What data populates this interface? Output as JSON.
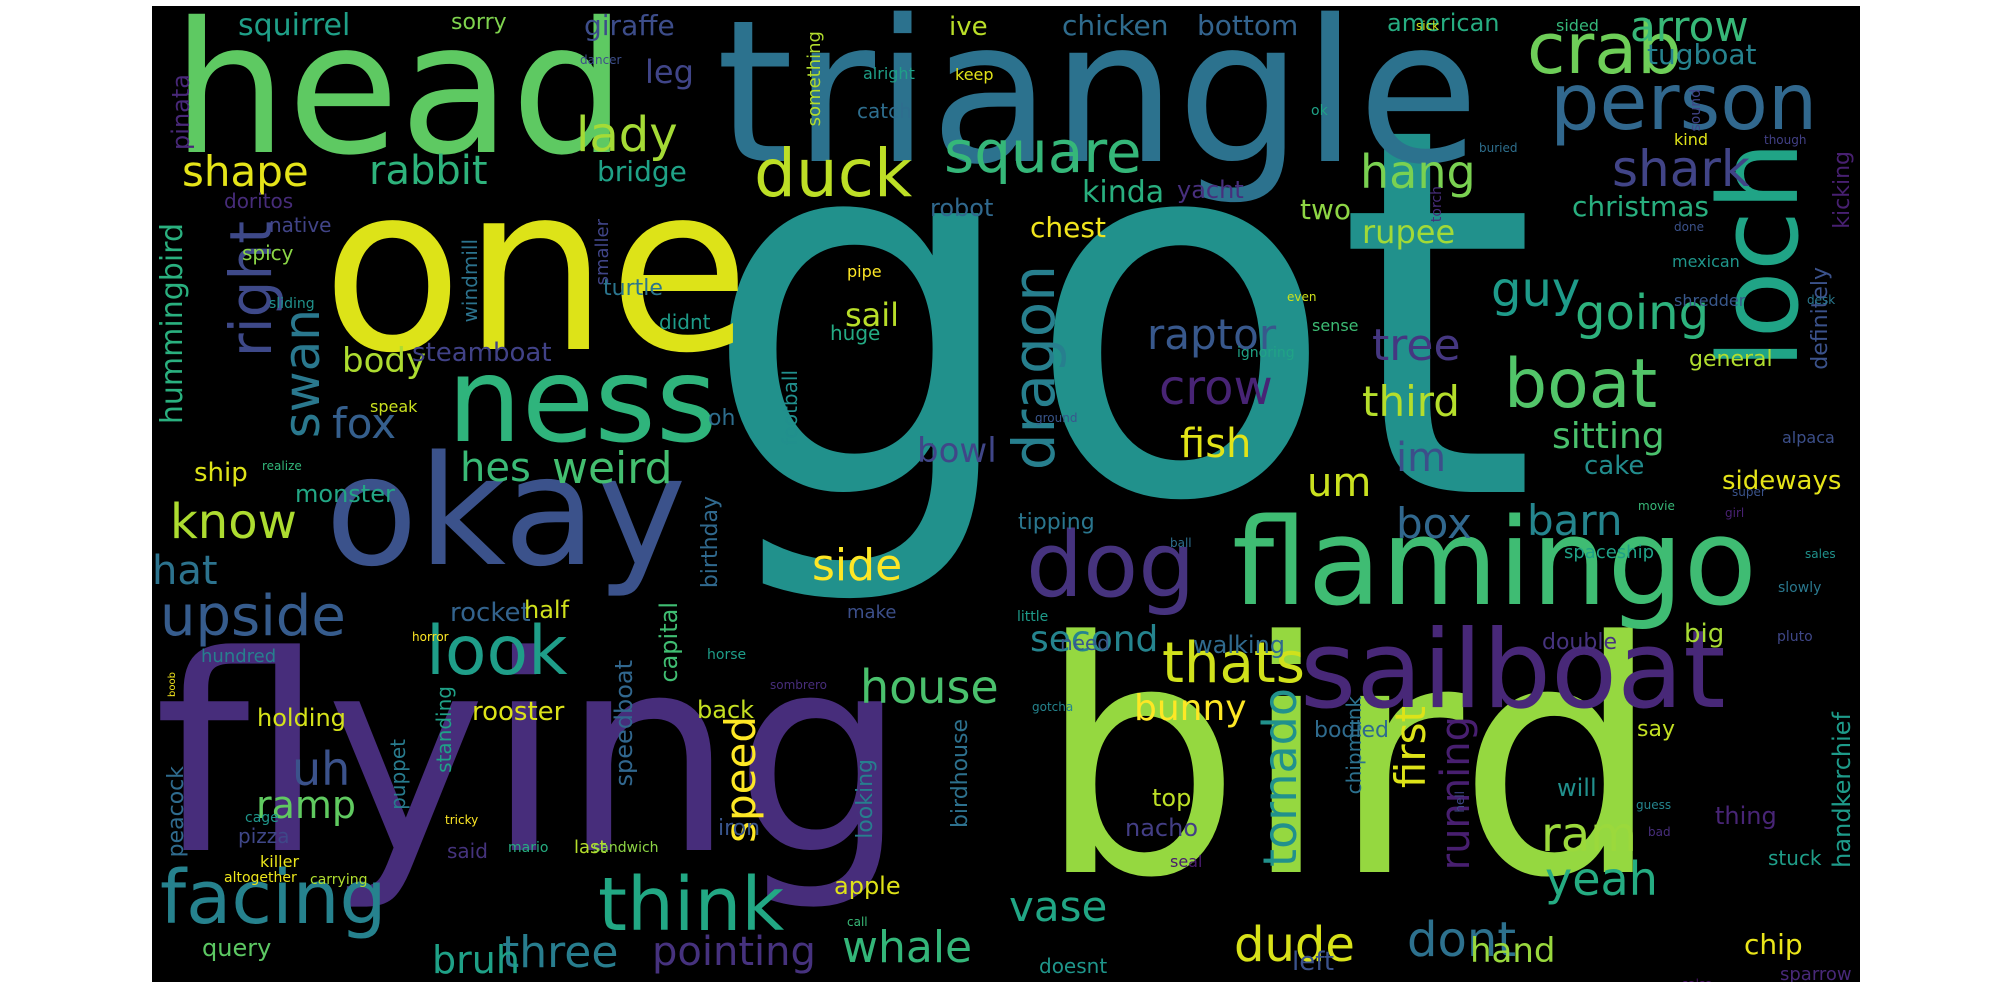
{
  "words": [
    {
      "t": "got",
      "c": "#21918c"
    },
    {
      "t": "flying",
      "c": "#472d7b"
    },
    {
      "t": "bird",
      "c": "#95d840"
    },
    {
      "t": "triangle",
      "c": "#2c728e"
    },
    {
      "t": "one",
      "c": "#dde318"
    },
    {
      "t": "head",
      "c": "#5ec962"
    },
    {
      "t": "okay",
      "c": "#3b528b"
    },
    {
      "t": "ness",
      "c": "#2fb47c"
    },
    {
      "t": "flamingo",
      "c": "#3fbc73"
    },
    {
      "t": "sailboat",
      "c": "#482878"
    },
    {
      "t": "loch",
      "c": "#20a486"
    },
    {
      "t": "person",
      "c": "#31688e"
    },
    {
      "t": "crab",
      "c": "#6ece58"
    },
    {
      "t": "dog",
      "c": "#46337e"
    },
    {
      "t": "facing",
      "c": "#26828e"
    },
    {
      "t": "think",
      "c": "#22a884"
    },
    {
      "t": "duck",
      "c": "#bddf26"
    },
    {
      "t": "square",
      "c": "#35b779"
    },
    {
      "t": "boat",
      "c": "#52c569"
    },
    {
      "t": "look",
      "c": "#1f9e89"
    },
    {
      "t": "upside",
      "c": "#365c8d"
    },
    {
      "t": "thats",
      "c": "#d0e11c"
    },
    {
      "t": "dragon",
      "c": "#277f8e"
    },
    {
      "t": "right",
      "c": "#3e4989"
    },
    {
      "t": "shark",
      "c": "#414487"
    },
    {
      "t": "swan",
      "c": "#2a788e"
    },
    {
      "t": "lady",
      "c": "#a5db36"
    },
    {
      "t": "hang",
      "c": "#7ad151"
    },
    {
      "t": "guy",
      "c": "#1e9b8a"
    },
    {
      "t": "going",
      "c": "#2db27d"
    },
    {
      "t": "crow",
      "c": "#482475"
    },
    {
      "t": "raptor",
      "c": "#38588c"
    },
    {
      "t": "fox",
      "c": "#355f8d"
    },
    {
      "t": "shape",
      "c": "#e5e419"
    },
    {
      "t": "rabbit",
      "c": "#2eb37c"
    },
    {
      "t": "know",
      "c": "#addc30"
    },
    {
      "t": "weird",
      "c": "#44bf70"
    },
    {
      "t": "hes",
      "c": "#3aba76"
    },
    {
      "t": "um",
      "c": "#cae11f"
    },
    {
      "t": "im",
      "c": "#3c4f8a"
    },
    {
      "t": "third",
      "c": "#b5de2b"
    },
    {
      "t": "tree",
      "c": "#453781"
    },
    {
      "t": "box",
      "c": "#31688e"
    },
    {
      "t": "barn",
      "c": "#25858e"
    },
    {
      "t": "side",
      "c": "#fde725"
    },
    {
      "t": "fish",
      "c": "#e2e418"
    },
    {
      "t": "hat",
      "c": "#2c738e"
    },
    {
      "t": "house",
      "c": "#4ac16d"
    },
    {
      "t": "whale",
      "c": "#34b679"
    },
    {
      "t": "dude",
      "c": "#d8e219"
    },
    {
      "t": "yeah",
      "c": "#25ac82"
    },
    {
      "t": "ram",
      "c": "#9bd93c"
    },
    {
      "t": "dont",
      "c": "#2d718e"
    },
    {
      "t": "three",
      "c": "#287d8e"
    },
    {
      "t": "pointing",
      "c": "#46327e"
    },
    {
      "t": "vase",
      "c": "#21a685"
    },
    {
      "t": "bruh",
      "c": "#1fa187"
    },
    {
      "t": "uh",
      "c": "#3b528b"
    },
    {
      "t": "ramp",
      "c": "#60ca60"
    },
    {
      "t": "tornado",
      "c": "#21918c"
    },
    {
      "t": "speed",
      "c": "#fde725"
    },
    {
      "t": "first",
      "c": "#dde318"
    },
    {
      "t": "running",
      "c": "#481f70"
    },
    {
      "t": "body",
      "c": "#addc30"
    },
    {
      "t": "bowl",
      "c": "#404688"
    },
    {
      "t": "second",
      "c": "#25848e"
    },
    {
      "t": "bunny",
      "c": "#fde725"
    },
    {
      "t": "sail",
      "c": "#b8de29"
    },
    {
      "t": "sitting",
      "c": "#4ac16d"
    },
    {
      "t": "christmas",
      "c": "#29af7f"
    },
    {
      "t": "rupee",
      "c": "#a2da37"
    },
    {
      "t": "arrow",
      "c": "#37b878"
    },
    {
      "t": "tugboat",
      "c": "#26828e"
    },
    {
      "t": "squirrel",
      "c": "#1fa088"
    },
    {
      "t": "chicken",
      "c": "#2f6c8e"
    },
    {
      "t": "bottom",
      "c": "#33638d"
    },
    {
      "t": "american",
      "c": "#26ad81"
    },
    {
      "t": "giraffe",
      "c": "#3d4d8a"
    },
    {
      "t": "leg",
      "c": "#404588"
    },
    {
      "t": "bridge",
      "c": "#1fa287"
    },
    {
      "t": "kinda",
      "c": "#29af7f"
    },
    {
      "t": "robot",
      "c": "#30698e"
    },
    {
      "t": "chest",
      "c": "#f1e51d"
    },
    {
      "t": "two",
      "c": "#8ed645"
    },
    {
      "t": "cake",
      "c": "#228c8d"
    },
    {
      "t": "sideways",
      "c": "#e5e419"
    },
    {
      "t": "hummingbird",
      "c": "#2ab07f"
    },
    {
      "t": "steamboat",
      "c": "#414287"
    },
    {
      "t": "ship",
      "c": "#dde318"
    },
    {
      "t": "monster",
      "c": "#22a785"
    },
    {
      "t": "rocket",
      "c": "#33638d"
    },
    {
      "t": "half",
      "c": "#d0e11c"
    },
    {
      "t": "tipping",
      "c": "#2a768e"
    },
    {
      "t": "walking",
      "c": "#306a8e"
    },
    {
      "t": "double",
      "c": "#46337e"
    },
    {
      "t": "big",
      "c": "#a8db34"
    },
    {
      "t": "need",
      "c": "#38598c"
    },
    {
      "t": "holding",
      "c": "#d5e21a"
    },
    {
      "t": "rooster",
      "c": "#dde318"
    },
    {
      "t": "back",
      "c": "#c5e021"
    },
    {
      "t": "bodied",
      "c": "#2f6b8e"
    },
    {
      "t": "say",
      "c": "#c2df23"
    },
    {
      "t": "hand",
      "c": "#99d83d"
    },
    {
      "t": "left",
      "c": "#3b528b"
    },
    {
      "t": "chip",
      "c": "#eae51a"
    },
    {
      "t": "apple",
      "c": "#dfe318"
    },
    {
      "t": "top",
      "c": "#bddf26"
    },
    {
      "t": "nacho",
      "c": "#433e85"
    },
    {
      "t": "will",
      "c": "#21908d"
    },
    {
      "t": "thing",
      "c": "#482576"
    },
    {
      "t": "query",
      "c": "#5cc863"
    },
    {
      "t": "doesnt",
      "c": "#1f968b"
    },
    {
      "t": "iron",
      "c": "#39558c"
    },
    {
      "t": "last",
      "c": "#b5de2b"
    },
    {
      "t": "said",
      "c": "#45337d"
    },
    {
      "t": "pizza",
      "c": "#3f4788"
    },
    {
      "t": "peacock",
      "c": "#2f6b8e"
    },
    {
      "t": "puppet",
      "c": "#287c8e"
    },
    {
      "t": "standing",
      "c": "#1fa187"
    },
    {
      "t": "speedboat",
      "c": "#31678e"
    },
    {
      "t": "capital",
      "c": "#40bd72"
    },
    {
      "t": "birthday",
      "c": "#30698e"
    },
    {
      "t": "football",
      "c": "#218f8d"
    },
    {
      "t": "looking",
      "c": "#277e8e"
    },
    {
      "t": "birdhouse",
      "c": "#2d718e"
    },
    {
      "t": "chipmunk",
      "c": "#2c718e"
    },
    {
      "t": "handkerchief",
      "c": "#1e9b8a"
    },
    {
      "t": "definitely",
      "c": "#3b528b"
    },
    {
      "t": "kicking",
      "c": "#482071"
    },
    {
      "t": "spaceship",
      "c": "#1fa287"
    },
    {
      "t": "mexican",
      "c": "#1f968b"
    },
    {
      "t": "general",
      "c": "#b0dd2f"
    },
    {
      "t": "alpaca",
      "c": "#3c4f8a"
    },
    {
      "t": "shredder",
      "c": "#38588c"
    },
    {
      "t": "sparrow",
      "c": "#482878"
    },
    {
      "t": "stuck",
      "c": "#1f9e89"
    },
    {
      "t": "ive",
      "c": "#bade28"
    },
    {
      "t": "sorry",
      "c": "#7fd34e"
    },
    {
      "t": "pinata",
      "c": "#482878"
    },
    {
      "t": "doritos",
      "c": "#472c7a"
    },
    {
      "t": "native",
      "c": "#414487"
    },
    {
      "t": "spicy",
      "c": "#8bd646"
    },
    {
      "t": "sliding",
      "c": "#20928c"
    },
    {
      "t": "windmill",
      "c": "#2c738e"
    },
    {
      "t": "smaller",
      "c": "#404588"
    },
    {
      "t": "something",
      "c": "#b2dd2d"
    },
    {
      "t": "catch",
      "c": "#2e6e8e"
    },
    {
      "t": "alright",
      "c": "#1fa088"
    },
    {
      "t": "keep",
      "c": "#e2e418"
    },
    {
      "t": "yacht",
      "c": "#472f7d"
    },
    {
      "t": "turtle",
      "c": "#2b758e"
    },
    {
      "t": "didnt",
      "c": "#1e9c89"
    },
    {
      "t": "oh",
      "c": "#2e6e8e"
    },
    {
      "t": "huge",
      "c": "#24aa83"
    },
    {
      "t": "pipe",
      "c": "#fde725"
    },
    {
      "t": "sense",
      "c": "#3dbc74"
    },
    {
      "t": "even",
      "c": "#cde11d"
    },
    {
      "t": "ignoring",
      "c": "#20a386"
    },
    {
      "t": "ground",
      "c": "#39568c"
    },
    {
      "t": "speak",
      "c": "#cae11f"
    },
    {
      "t": "realize",
      "c": "#32b67a"
    },
    {
      "t": "super",
      "c": "#3a538b"
    },
    {
      "t": "girl",
      "c": "#482173"
    },
    {
      "t": "movie",
      "c": "#37b878"
    },
    {
      "t": "ball",
      "c": "#2e6f8e"
    },
    {
      "t": "sales",
      "c": "#20928c"
    },
    {
      "t": "slowly",
      "c": "#2a788e"
    },
    {
      "t": "pluto",
      "c": "#3f4788"
    },
    {
      "t": "sick",
      "c": "#d2e21b"
    },
    {
      "t": "sided",
      "c": "#35b779"
    },
    {
      "t": "sound",
      "c": "#414487"
    },
    {
      "t": "buried",
      "c": "#2e6f8e"
    },
    {
      "t": "kind",
      "c": "#dfe318"
    },
    {
      "t": "though",
      "c": "#424086"
    },
    {
      "t": "torch",
      "c": "#472d7b"
    },
    {
      "t": "desk",
      "c": "#2a788e"
    },
    {
      "t": "done",
      "c": "#3b528b"
    },
    {
      "t": "ok",
      "c": "#1fa287"
    },
    {
      "t": "dancer",
      "c": "#3d4e8a"
    },
    {
      "t": "horror",
      "c": "#fde725"
    },
    {
      "t": "horse",
      "c": "#1e9d89"
    },
    {
      "t": "hundred",
      "c": "#277f8e"
    },
    {
      "t": "boob",
      "c": "#f1e51d"
    },
    {
      "t": "cage",
      "c": "#1f968b"
    },
    {
      "t": "mario",
      "c": "#26ad81"
    },
    {
      "t": "tricky",
      "c": "#fde725"
    },
    {
      "t": "killer",
      "c": "#eae51a"
    },
    {
      "t": "altogether",
      "c": "#ece51b"
    },
    {
      "t": "carrying",
      "c": "#b0dd2f"
    },
    {
      "t": "sandwich",
      "c": "#8ed645"
    },
    {
      "t": "gotcha",
      "c": "#25848e"
    },
    {
      "t": "sombrero",
      "c": "#472d7b"
    },
    {
      "t": "make",
      "c": "#3c4f8a"
    },
    {
      "t": "little",
      "c": "#1e9b8a"
    },
    {
      "t": "call",
      "c": "#38b977"
    },
    {
      "t": "seal",
      "c": "#481b6d"
    },
    {
      "t": "guess",
      "c": "#25858e"
    },
    {
      "t": "bad",
      "c": "#472e7c"
    },
    {
      "t": "hell",
      "c": "#3f4889"
    },
    {
      "t": "salsa",
      "c": "#471164"
    }
  ]
}
